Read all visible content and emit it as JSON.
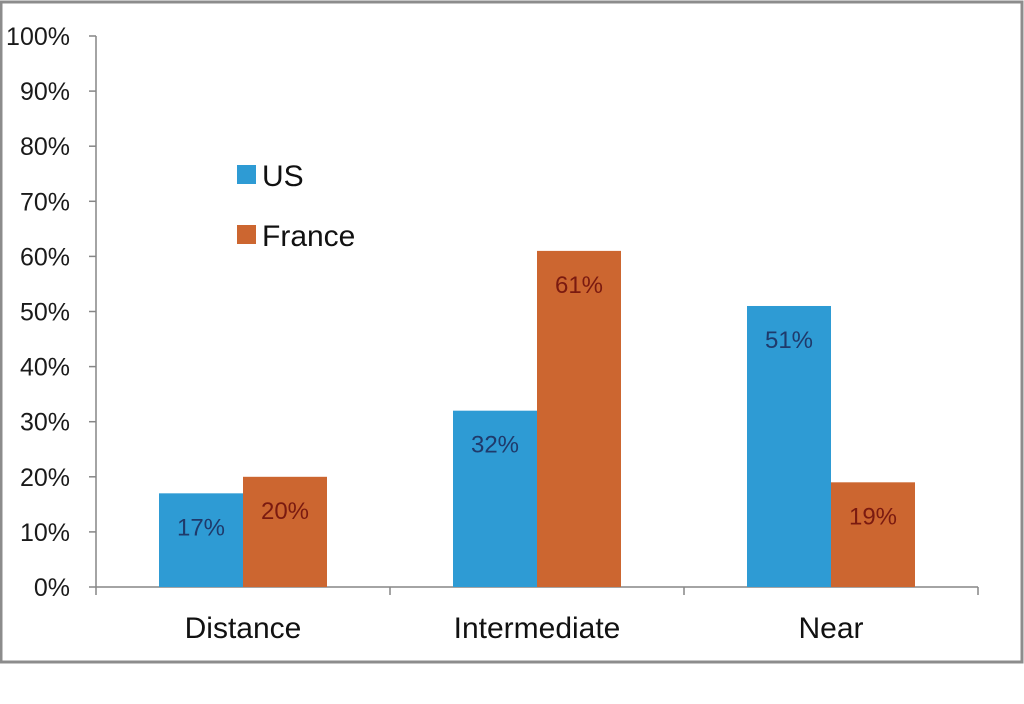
{
  "chart_data": {
    "type": "bar",
    "categories": [
      "Distance",
      "Intermediate",
      "Near"
    ],
    "series": [
      {
        "name": "US",
        "values": [
          17,
          32,
          51
        ],
        "color": "#2e9bd4",
        "labels": [
          "17%",
          "32%",
          "51%"
        ],
        "label_color": "#1f3a6b"
      },
      {
        "name": "France",
        "values": [
          20,
          61,
          19
        ],
        "color": "#cc6630",
        "labels": [
          "20%",
          "61%",
          "19%"
        ],
        "label_color": "#7a1a10"
      }
    ],
    "ylim": [
      0,
      100
    ],
    "y_ticks": [
      0,
      10,
      20,
      30,
      40,
      50,
      60,
      70,
      80,
      90,
      100
    ],
    "y_tick_labels": [
      "0%",
      "10%",
      "20%",
      "30%",
      "40%",
      "50%",
      "60%",
      "70%",
      "80%",
      "90%",
      "100%"
    ],
    "legend_position": "upper-left",
    "grid": false,
    "title": "",
    "xlabel": "",
    "ylabel": ""
  }
}
